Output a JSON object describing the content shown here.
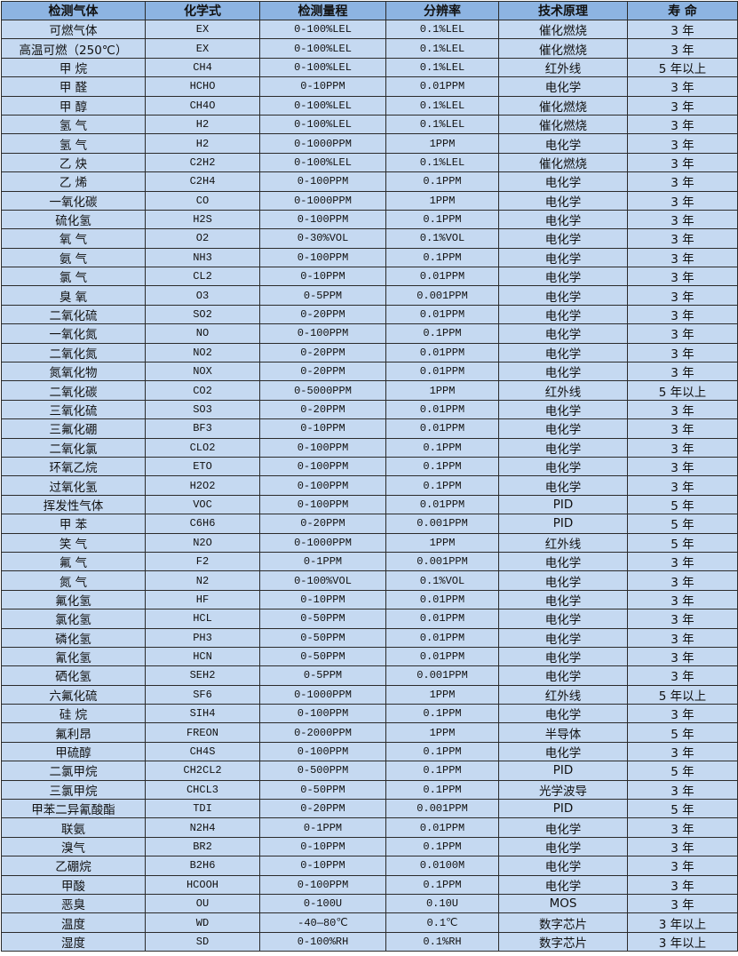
{
  "colors": {
    "header_bg": "#8db4e2",
    "row_bg": "#c5d9f1",
    "border": "#2b2b2b"
  },
  "table": {
    "headers": [
      "检测气体",
      "化学式",
      "检测量程",
      "分辨率",
      "技术原理",
      "寿 命"
    ],
    "rows": [
      [
        "可燃气体",
        "EX",
        "0-100%LEL",
        "0.1%LEL",
        "催化燃烧",
        "3 年"
      ],
      [
        "高温可燃（250℃）",
        "EX",
        "0-100%LEL",
        "0.1%LEL",
        "催化燃烧",
        "3 年"
      ],
      [
        "甲 烷",
        "CH4",
        "0-100%LEL",
        "0.1%LEL",
        "红外线",
        "5 年以上"
      ],
      [
        "甲 醛",
        "HCHO",
        "0-10PPM",
        "0.01PPM",
        "电化学",
        "3 年"
      ],
      [
        "甲 醇",
        "CH4O",
        "0-100%LEL",
        "0.1%LEL",
        "催化燃烧",
        "3 年"
      ],
      [
        "氢 气",
        "H2",
        "0-100%LEL",
        "0.1%LEL",
        "催化燃烧",
        "3 年"
      ],
      [
        "氢 气",
        "H2",
        "0-1000PPM",
        "1PPM",
        "电化学",
        "3 年"
      ],
      [
        "乙 炔",
        "C2H2",
        "0-100%LEL",
        "0.1%LEL",
        "催化燃烧",
        "3 年"
      ],
      [
        "乙 烯",
        "C2H4",
        "0-100PPM",
        "0.1PPM",
        "电化学",
        "3 年"
      ],
      [
        "一氧化碳",
        "CO",
        "0-1000PPM",
        "1PPM",
        "电化学",
        "3 年"
      ],
      [
        "硫化氢",
        "H2S",
        "0-100PPM",
        "0.1PPM",
        "电化学",
        "3 年"
      ],
      [
        "氧 气",
        "O2",
        "0-30%VOL",
        "0.1%VOL",
        "电化学",
        "3 年"
      ],
      [
        "氨 气",
        "NH3",
        "0-100PPM",
        "0.1PPM",
        "电化学",
        "3 年"
      ],
      [
        "氯 气",
        "CL2",
        "0-10PPM",
        "0.01PPM",
        "电化学",
        "3 年"
      ],
      [
        "臭 氧",
        "O3",
        "0-5PPM",
        "0.001PPM",
        "电化学",
        "3 年"
      ],
      [
        "二氧化硫",
        "SO2",
        "0-20PPM",
        "0.01PPM",
        "电化学",
        "3 年"
      ],
      [
        "一氧化氮",
        "NO",
        "0-100PPM",
        "0.1PPM",
        "电化学",
        "3 年"
      ],
      [
        "二氧化氮",
        "NO2",
        "0-20PPM",
        "0.01PPM",
        "电化学",
        "3 年"
      ],
      [
        "氮氧化物",
        "NOX",
        "0-20PPM",
        "0.01PPM",
        "电化学",
        "3 年"
      ],
      [
        "二氧化碳",
        "CO2",
        "0-5000PPM",
        "1PPM",
        "红外线",
        "5 年以上"
      ],
      [
        "三氧化硫",
        "SO3",
        "0-20PPM",
        "0.01PPM",
        "电化学",
        "3 年"
      ],
      [
        "三氟化硼",
        "BF3",
        "0-10PPM",
        "0.01PPM",
        "电化学",
        "3 年"
      ],
      [
        "二氧化氯",
        "CLO2",
        "0-100PPM",
        "0.1PPM",
        "电化学",
        "3 年"
      ],
      [
        "环氧乙烷",
        "ETO",
        "0-100PPM",
        "0.1PPM",
        "电化学",
        "3 年"
      ],
      [
        "过氧化氢",
        "H2O2",
        "0-100PPM",
        "0.1PPM",
        "电化学",
        "3 年"
      ],
      [
        "挥发性气体",
        "VOC",
        "0-100PPM",
        "0.01PPM",
        "PID",
        "5 年"
      ],
      [
        "甲 苯",
        "C6H6",
        "0-20PPM",
        "0.001PPM",
        "PID",
        "5 年"
      ],
      [
        "笑 气",
        "N2O",
        "0-1000PPM",
        "1PPM",
        "红外线",
        "5 年"
      ],
      [
        "氟 气",
        "F2",
        "0-1PPM",
        "0.001PPM",
        "电化学",
        "3 年"
      ],
      [
        "氮 气",
        "N2",
        "0-100%VOL",
        "0.1%VOL",
        "电化学",
        "3 年"
      ],
      [
        "氟化氢",
        "HF",
        "0-10PPM",
        "0.01PPM",
        "电化学",
        "3 年"
      ],
      [
        "氯化氢",
        "HCL",
        "0-50PPM",
        "0.01PPM",
        "电化学",
        "3 年"
      ],
      [
        "磷化氢",
        "PH3",
        "0-50PPM",
        "0.01PPM",
        "电化学",
        "3 年"
      ],
      [
        "氰化氢",
        "HCN",
        "0-50PPM",
        "0.01PPM",
        "电化学",
        "3 年"
      ],
      [
        "硒化氢",
        "SEH2",
        "0-5PPM",
        "0.001PPM",
        "电化学",
        "3 年"
      ],
      [
        "六氟化硫",
        "SF6",
        "0-1000PPM",
        "1PPM",
        "红外线",
        "5 年以上"
      ],
      [
        "硅 烷",
        "SIH4",
        "0-100PPM",
        "0.1PPM",
        "电化学",
        "3 年"
      ],
      [
        "氟利昂",
        "FREON",
        "0-2000PPM",
        "1PPM",
        "半导体",
        "5 年"
      ],
      [
        "甲硫醇",
        "CH4S",
        "0-100PPM",
        "0.1PPM",
        "电化学",
        "3 年"
      ],
      [
        "二氯甲烷",
        "CH2CL2",
        "0-500PPM",
        "0.1PPM",
        "PID",
        "5 年"
      ],
      [
        "三氯甲烷",
        "CHCL3",
        "0-50PPM",
        "0.1PPM",
        "光学波导",
        "3 年"
      ],
      [
        "甲苯二异氰酸酯",
        "TDI",
        "0-20PPM",
        "0.001PPM",
        "PID",
        "5 年"
      ],
      [
        "联氨",
        "N2H4",
        "0-1PPM",
        "0.01PPM",
        "电化学",
        "3 年"
      ],
      [
        "溴气",
        "BR2",
        "0-10PPM",
        "0.1PPM",
        "电化学",
        "3 年"
      ],
      [
        "乙硼烷",
        "B2H6",
        "0-10PPM",
        "0.0100M",
        "电化学",
        "3 年"
      ],
      [
        "甲酸",
        "HCOOH",
        "0-100PPM",
        "0.1PPM",
        "电化学",
        "3 年"
      ],
      [
        "恶臭",
        "OU",
        "0-100U",
        "0.10U",
        "MOS",
        "3 年"
      ],
      [
        "温度",
        "WD",
        "-40—80℃",
        "0.1℃",
        "数字芯片",
        "3 年以上"
      ],
      [
        "湿度",
        "SD",
        "0-100%RH",
        "0.1%RH",
        "数字芯片",
        "3 年以上"
      ]
    ]
  }
}
